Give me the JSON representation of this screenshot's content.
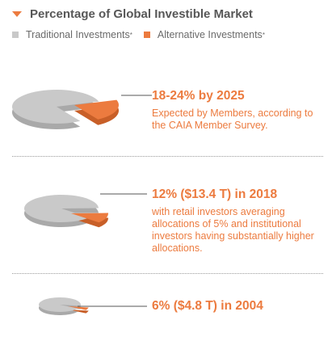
{
  "header": {
    "title": "Percentage of Global Investible Market"
  },
  "legend": {
    "traditional": "Traditional Investments",
    "alternative": "Alternative Investments",
    "marker": "*"
  },
  "colors": {
    "accent": "#ec7b3f",
    "traditional": "#c9c9c9",
    "traditional_dark": "#a9a9a9",
    "alternative_dark": "#c85f28"
  },
  "chart_data": [
    {
      "type": "pie",
      "title": "18-24% by 2025",
      "annotation": "Expected by Members, according to the CAIA Member Survey.",
      "slices": [
        {
          "name": "Traditional Investments",
          "value": 79
        },
        {
          "name": "Alternative Investments",
          "value": 21
        }
      ]
    },
    {
      "type": "pie",
      "title": "12% ($13.4 T) in 2018",
      "annotation": "with retail investors averaging allocations of 5% and institutional investors having substantially higher allocations.",
      "slices": [
        {
          "name": "Traditional Investments",
          "value": 88
        },
        {
          "name": "Alternative Investments",
          "value": 12
        }
      ]
    },
    {
      "type": "pie",
      "title": "6% ($4.8 T) in 2004",
      "annotation": "",
      "slices": [
        {
          "name": "Traditional Investments",
          "value": 94
        },
        {
          "name": "Alternative Investments",
          "value": 6
        }
      ]
    }
  ]
}
